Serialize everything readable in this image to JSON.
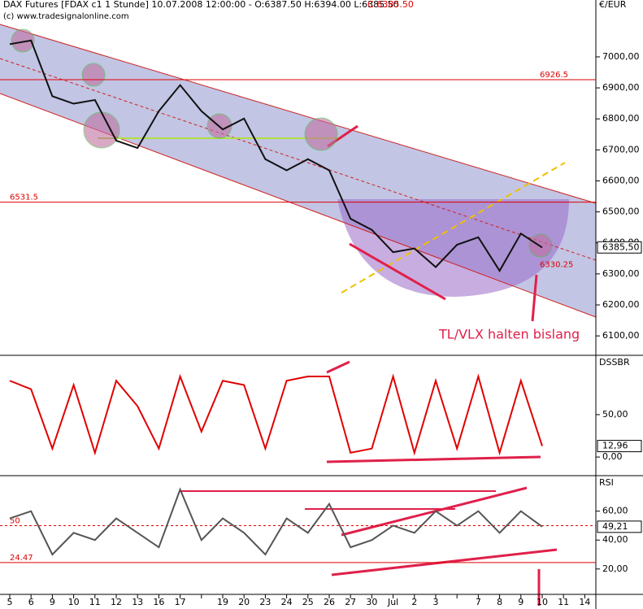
{
  "chart_data": [
    {
      "type": "line",
      "title": "DAX Futures [FDAX c1  1 Stunde] 10.07.2008 12:00:00 - O:6387.50 H:6394.00 L:6385.50",
      "close_label": "C:6385.50",
      "subtitle": "(c) www.tradesignalonline.com",
      "y_unit": "€/EUR",
      "color": "#111111",
      "values": [
        7041,
        7053,
        6873,
        6849,
        6861,
        6730,
        6706,
        6825,
        6909,
        6825,
        6766,
        6801,
        6670,
        6634,
        6670,
        6634,
        6478,
        6442,
        6370,
        6382,
        6322,
        6394,
        6418,
        6310,
        6430,
        6385,
        null,
        null
      ],
      "ylim": [
        6040,
        7110
      ],
      "yticks": [
        {
          "value": 6100,
          "label": "6100,00"
        },
        {
          "value": 6200,
          "label": "6200,00"
        },
        {
          "value": 6300,
          "label": "6300,00"
        },
        {
          "value": 6400,
          "label": "6400,00"
        },
        {
          "value": 6500,
          "label": "6500,00"
        },
        {
          "value": 6600,
          "label": "6600,00"
        },
        {
          "value": 6700,
          "label": "6700,00"
        },
        {
          "value": 6800,
          "label": "6800,00"
        },
        {
          "value": 6900,
          "label": "6900,00"
        },
        {
          "value": 7000,
          "label": "7000,00"
        }
      ],
      "hlines": [
        {
          "value": 6926.5,
          "label": "6926.5"
        },
        {
          "value": 6531.5,
          "label": "6531.5"
        }
      ],
      "point_label": {
        "value": 6330.25,
        "label": "6330.25"
      },
      "last": {
        "value": 6385.5,
        "label": "6385,50"
      },
      "annotation": "TL/VLX halten bislang"
    },
    {
      "type": "line",
      "title": "DSSBR",
      "color": "#e00000",
      "values": [
        90,
        80,
        10,
        85,
        5,
        90,
        60,
        10,
        95,
        30,
        90,
        85,
        10,
        90,
        95,
        95,
        5,
        10,
        95,
        5,
        90,
        10,
        95,
        5,
        90,
        12.96,
        null,
        null
      ],
      "ylim": [
        -21,
        119
      ],
      "yticks": [
        {
          "value": 0,
          "label": "0,00"
        },
        {
          "value": 50,
          "label": "50,00"
        }
      ],
      "last": {
        "value": 12.96,
        "label": "12,96"
      }
    },
    {
      "type": "line",
      "title": "RSI",
      "color": "#555555",
      "categories": [
        "5",
        "6",
        "9",
        "10",
        "11",
        "12",
        "13",
        "16",
        "17",
        null,
        "19",
        "20",
        "23",
        "24",
        "25",
        "26",
        "27",
        "30",
        "Jul",
        "2",
        "3",
        null,
        "7",
        "8",
        "9",
        "10",
        "11",
        "14"
      ],
      "values": [
        55,
        60,
        30,
        45,
        40,
        55,
        45,
        35,
        75,
        40,
        55,
        45,
        30,
        55,
        45,
        65,
        35,
        40,
        50,
        45,
        60,
        50,
        60,
        45,
        60,
        49.21,
        null,
        null
      ],
      "ylim": [
        3,
        84
      ],
      "yticks": [
        {
          "value": 20,
          "label": "20,00"
        },
        {
          "value": 40,
          "label": "40,00"
        },
        {
          "value": 60,
          "label": "60,00"
        }
      ],
      "hlines": [
        {
          "value": 24.47,
          "label": "24.47"
        },
        {
          "value": 50,
          "label": "50"
        }
      ],
      "last": {
        "value": 49.21,
        "label": "49,21"
      }
    }
  ]
}
